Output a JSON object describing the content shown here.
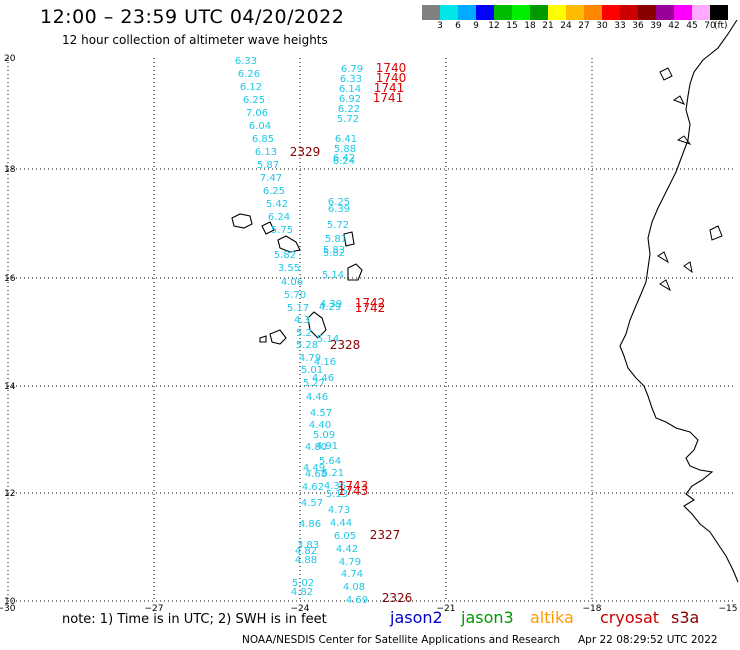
{
  "header": {
    "title": "12:00 – 23:59 UTC 04/20/2022",
    "subtitle": "12 hour collection of altimeter wave heights"
  },
  "colorbar": {
    "colors": [
      "#808080",
      "#00e5e5",
      "#00aaff",
      "#0000ff",
      "#00bb00",
      "#00ee00",
      "#009900",
      "#ffff00",
      "#ffbb00",
      "#ff8800",
      "#ff0000",
      "#cc0000",
      "#880000",
      "#990099",
      "#ff00ff",
      "#ffaaff",
      "#000000"
    ],
    "labels": [
      "3",
      "6",
      "9",
      "12",
      "15",
      "18",
      "21",
      "24",
      "27",
      "30",
      "33",
      "36",
      "39",
      "42",
      "45",
      "70"
    ],
    "unit": "(ft)"
  },
  "axes": {
    "x_labels": [
      "−30",
      "−27",
      "−24",
      "−21",
      "−18",
      "−15"
    ],
    "y_labels": [
      "20",
      "18",
      "16",
      "14",
      "12",
      "10"
    ]
  },
  "wave_colors": {
    "cyan": "#1ec8e8",
    "red": "#dd0000",
    "darkred": "#880000"
  },
  "track_a": [
    "6.33",
    "6.26",
    "6.12",
    "6.25",
    "7.06",
    "6.04",
    "6.85",
    "6.13",
    "5.87",
    "7.47",
    "6.25",
    "5.42",
    "6.24",
    "5.75",
    "5.82",
    "3.55",
    "4.06",
    "5.70",
    "5.17",
    "4.3",
    "5.2",
    "5.28",
    "4.79",
    "5.01",
    "5.27",
    "4.46",
    "4.80",
    "4.49",
    "4.68",
    "4.62",
    "4.57",
    "4.86",
    "3.83",
    "4.82",
    "4.88",
    "5.02",
    "4.82"
  ],
  "track_b": [
    "6.79",
    "6.33",
    "6.14",
    "6.92",
    "6.22",
    "5.72",
    "6.41",
    "5.88",
    "6.42",
    "6.24",
    "6.25",
    "6.39",
    "5.72",
    "5.81",
    "5.83",
    "5.82",
    "5.14",
    "4.39",
    "4.29",
    "5.14",
    "4.16",
    "4.46",
    "4.57",
    "4.40",
    "5.09",
    "4.91",
    "5.64",
    "5.21",
    "4.36",
    "5.13",
    "4.73",
    "4.44",
    "6.05",
    "4.42",
    "4.79",
    "4.74",
    "4.08",
    "4.69"
  ],
  "time_labels": [
    {
      "text": "1740",
      "color": "red"
    },
    {
      "text": "1740",
      "color": "red"
    },
    {
      "text": "1741",
      "color": "red"
    },
    {
      "text": "1741",
      "color": "red"
    },
    {
      "text": "2329",
      "color": "darkred"
    },
    {
      "text": "1742",
      "color": "red"
    },
    {
      "text": "1742",
      "color": "red"
    },
    {
      "text": "2328",
      "color": "darkred"
    },
    {
      "text": "1743",
      "color": "red"
    },
    {
      "text": "1743",
      "color": "red"
    },
    {
      "text": "2327",
      "color": "darkred"
    },
    {
      "text": "2326",
      "color": "darkred"
    }
  ],
  "footer": {
    "note": "note: 1) Time is in UTC; 2) SWH is in feet",
    "satellites": [
      {
        "name": "jason2",
        "color": "#0000cc"
      },
      {
        "name": "jason3",
        "color": "#009900"
      },
      {
        "name": "altika",
        "color": "#ff9900"
      },
      {
        "name": "cryosat",
        "color": "#cc0000"
      },
      {
        "name": "s3a",
        "color": "#880000"
      }
    ],
    "credit": "NOAA/NESDIS Center for Satellite Applications and Research",
    "timestamp": "Apr 22 08:29:52 UTC 2022"
  }
}
